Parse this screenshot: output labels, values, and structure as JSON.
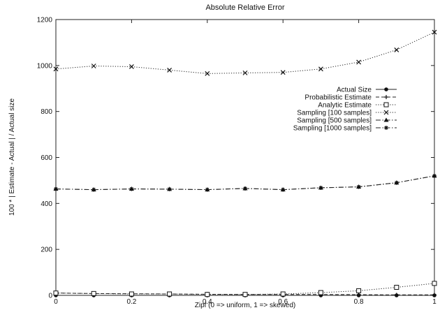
{
  "chart_data": {
    "type": "line",
    "title": "Absolute Relative Error",
    "xlabel": "Zipf (0 => uniform, 1 => skewed)",
    "ylabel": "100 * | Estimate - Actual | / Actual size",
    "xlim": [
      0,
      1
    ],
    "ylim": [
      0,
      1200
    ],
    "x_ticks": [
      "0",
      "0.2",
      "0.4",
      "0.6",
      "0.8",
      "1"
    ],
    "y_ticks": [
      "0",
      "200",
      "400",
      "600",
      "800",
      "1000",
      "1200"
    ],
    "grid": false,
    "legend_position": "right",
    "x": [
      0,
      0.1,
      0.2,
      0.3,
      0.4,
      0.5,
      0.6,
      0.7,
      0.8,
      0.9,
      1.0
    ],
    "series": [
      {
        "name": "Actual Size",
        "marker": "filled-circle",
        "dash": "solid",
        "values": [
          0,
          0,
          0,
          0,
          0,
          0,
          0,
          0,
          0,
          0,
          0
        ]
      },
      {
        "name": "Probabilistic Estimate",
        "marker": "plus",
        "dash": "dashed",
        "values": [
          10,
          8,
          7,
          6,
          5,
          4,
          4,
          4,
          3,
          2,
          2
        ]
      },
      {
        "name": "Analytic Estimate",
        "marker": "open-square",
        "dash": "dotted",
        "values": [
          10,
          8,
          6,
          6,
          4,
          4,
          6,
          12,
          20,
          35,
          52
        ]
      },
      {
        "name": "Sampling [100 samples]",
        "marker": "x",
        "dash": "dotted",
        "values": [
          985,
          998,
          995,
          980,
          965,
          968,
          970,
          985,
          1015,
          1068,
          1145
        ]
      },
      {
        "name": "Sampling [500 samples]",
        "marker": "filled-triangle",
        "dash": "dashdot",
        "values": [
          463,
          460,
          463,
          462,
          460,
          465,
          460,
          468,
          472,
          490,
          520
        ]
      },
      {
        "name": "Sampling [1000 samples]",
        "marker": "asterisk",
        "dash": "dashdot",
        "values": [
          463,
          460,
          463,
          462,
          460,
          465,
          460,
          468,
          472,
          490,
          520
        ]
      }
    ]
  }
}
